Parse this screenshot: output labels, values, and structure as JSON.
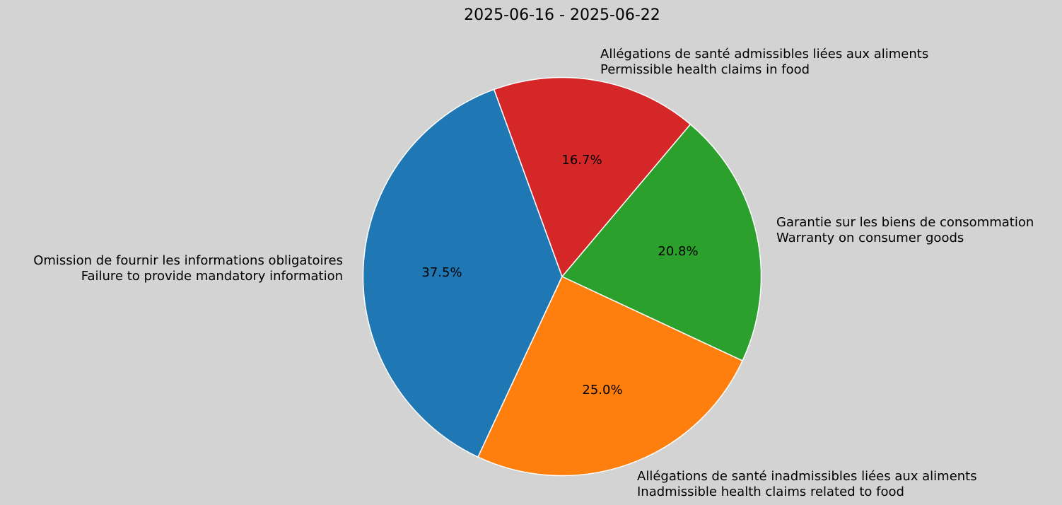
{
  "chart_data": {
    "type": "pie",
    "title": "2025-06-16 - 2025-06-22",
    "startangle_deg": 110,
    "direction": "counterclockwise",
    "slices": [
      {
        "label_fr": "Omission de fournir les informations obligatoires",
        "label_en": "Failure to provide mandatory information",
        "value": 37.5,
        "pct_label": "37.5%",
        "color": "#1f77b4"
      },
      {
        "label_fr": "Allégations de santé inadmissibles liées aux aliments",
        "label_en": "Inadmissible health claims related to food",
        "value": 25.0,
        "pct_label": "25.0%",
        "color": "#ff7f0e"
      },
      {
        "label_fr": "Garantie sur les biens de consommation",
        "label_en": "Warranty on consumer goods",
        "value": 20.8,
        "pct_label": "20.8%",
        "color": "#2ca02c"
      },
      {
        "label_fr": "Allégations de santé admissibles liées aux aliments",
        "label_en": "Permissible health claims in food",
        "value": 16.7,
        "pct_label": "16.7%",
        "color": "#d62728"
      }
    ]
  }
}
